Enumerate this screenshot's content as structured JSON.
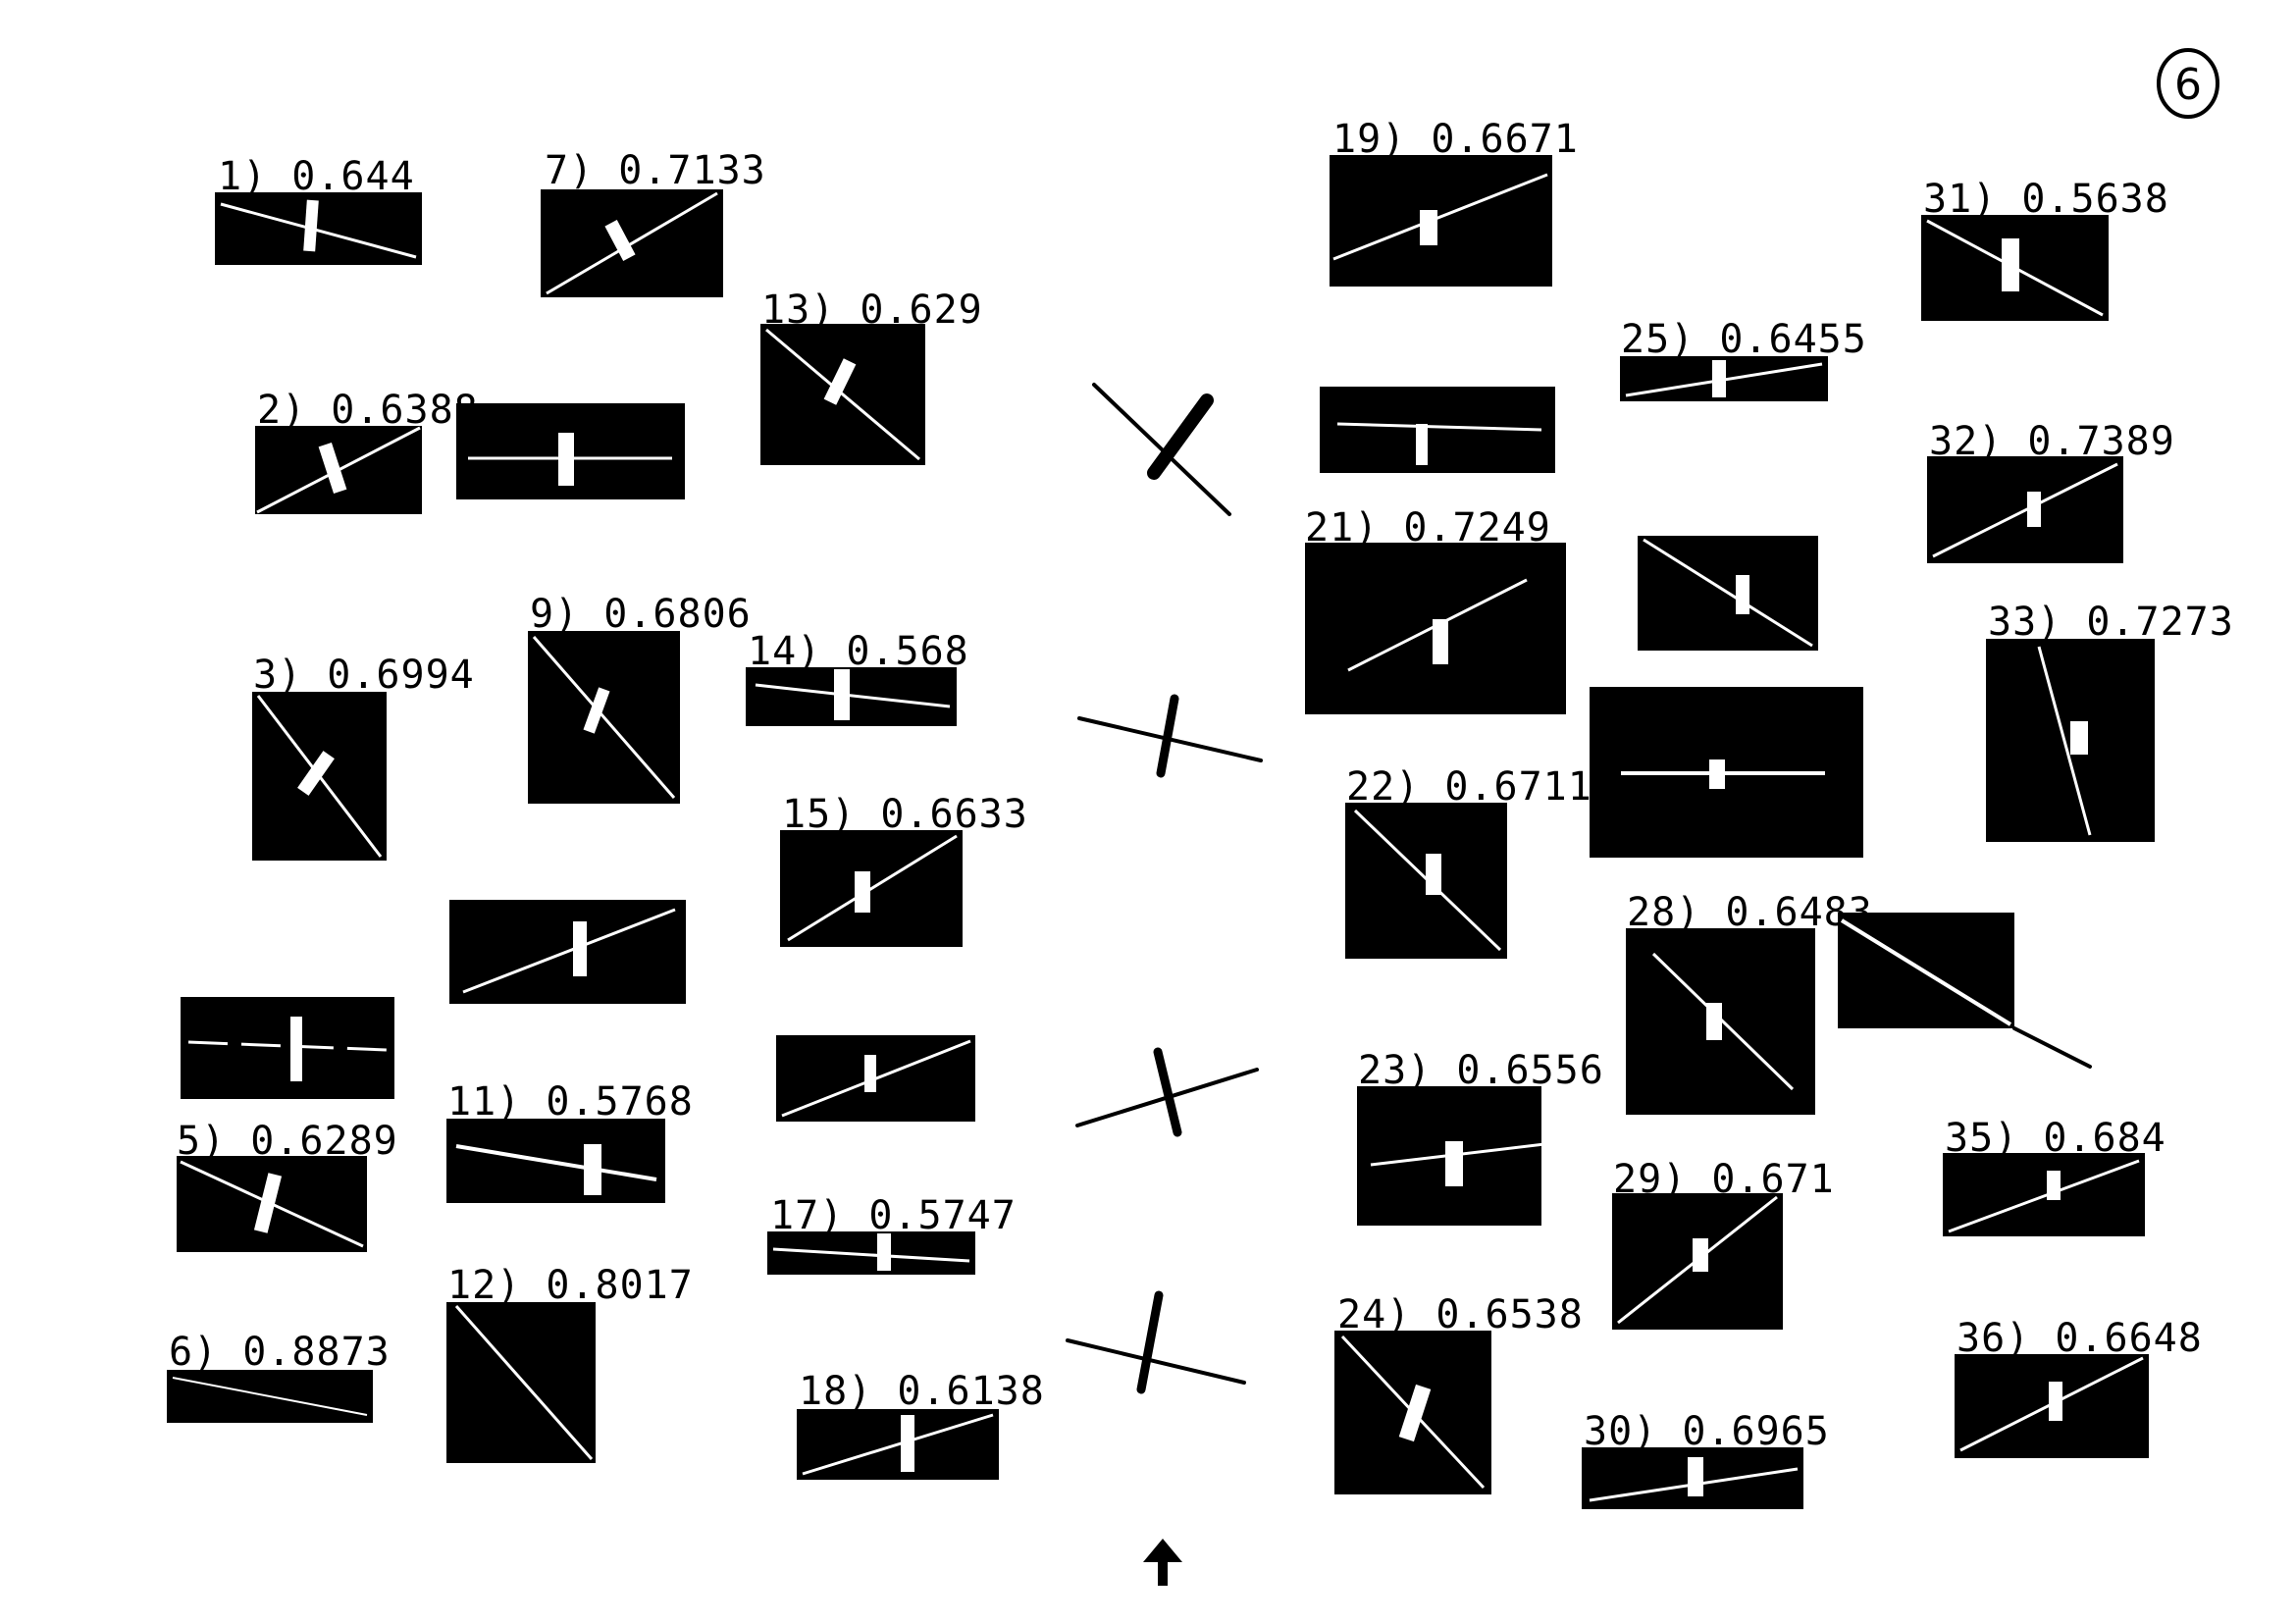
{
  "page_number": "6",
  "labels": {
    "l1": "1) 0.644",
    "l2": "2) 0.6388",
    "l3": "3) 0.6994",
    "l5": "5) 0.6289",
    "l6": "6) 0.8873",
    "l7": "7) 0.7133",
    "l9": "9) 0.6806",
    "l11": "11) 0.5768",
    "l12": "12) 0.8017",
    "l13": "13) 0.629",
    "l14": "14) 0.568",
    "l15": "15) 0.6633",
    "l17": "17) 0.5747",
    "l18": "18) 0.6138",
    "l19": "19) 0.6671",
    "l21": "21) 0.7249",
    "l22": "22) 0.6711",
    "l23": "23) 0.6556",
    "l24": "24) 0.6538",
    "l25": "25) 0.6455",
    "l28": "28) 0.6483",
    "l29": "29) 0.671",
    "l30": "30) 0.6965",
    "l31": "31) 0.5638",
    "l32": "32) 0.7389",
    "l33": "33) 0.7273",
    "l35": "35) 0.684",
    "l36": "36) 0.6648"
  }
}
